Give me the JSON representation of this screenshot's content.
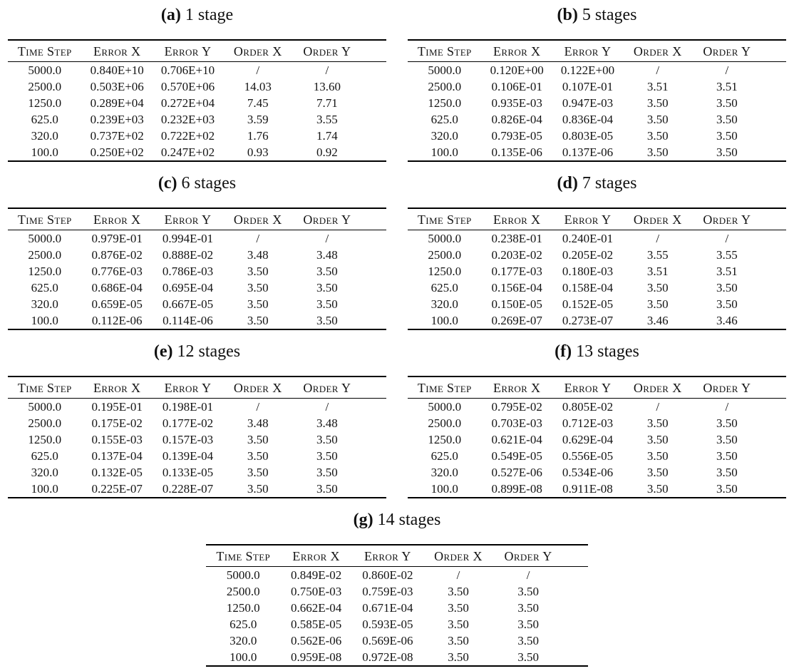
{
  "page": {
    "background_color": "#ffffff",
    "text_color": "#141414",
    "rule_color": "#000000"
  },
  "tables": [
    {
      "id": "a",
      "label_display": "(a)",
      "title": "1 stage",
      "columns": [
        "Time Step",
        "Error X",
        "Error Y",
        "Order X",
        "Order Y"
      ],
      "rows": [
        [
          "5000.0",
          "0.840E+10",
          "0.706E+10",
          "/",
          "/"
        ],
        [
          "2500.0",
          "0.503E+06",
          "0.570E+06",
          "14.03",
          "13.60"
        ],
        [
          "1250.0",
          "0.289E+04",
          "0.272E+04",
          "7.45",
          "7.71"
        ],
        [
          "625.0",
          "0.239E+03",
          "0.232E+03",
          "3.59",
          "3.55"
        ],
        [
          "320.0",
          "0.737E+02",
          "0.722E+02",
          "1.76",
          "1.74"
        ],
        [
          "100.0",
          "0.250E+02",
          "0.247E+02",
          "0.93",
          "0.92"
        ]
      ],
      "placement": "grid"
    },
    {
      "id": "b",
      "label_display": "(b)",
      "title": "5 stages",
      "columns": [
        "Time Step",
        "Error X",
        "Error Y",
        "Order X",
        "Order Y"
      ],
      "rows": [
        [
          "5000.0",
          "0.120E+00",
          "0.122E+00",
          "/",
          "/"
        ],
        [
          "2500.0",
          "0.106E-01",
          "0.107E-01",
          "3.51",
          "3.51"
        ],
        [
          "1250.0",
          "0.935E-03",
          "0.947E-03",
          "3.50",
          "3.50"
        ],
        [
          "625.0",
          "0.826E-04",
          "0.836E-04",
          "3.50",
          "3.50"
        ],
        [
          "320.0",
          "0.793E-05",
          "0.803E-05",
          "3.50",
          "3.50"
        ],
        [
          "100.0",
          "0.135E-06",
          "0.137E-06",
          "3.50",
          "3.50"
        ]
      ],
      "placement": "grid"
    },
    {
      "id": "c",
      "label_display": "(c)",
      "title": "6 stages",
      "columns": [
        "Time Step",
        "Error X",
        "Error Y",
        "Order X",
        "Order Y"
      ],
      "rows": [
        [
          "5000.0",
          "0.979E-01",
          "0.994E-01",
          "/",
          "/"
        ],
        [
          "2500.0",
          "0.876E-02",
          "0.888E-02",
          "3.48",
          "3.48"
        ],
        [
          "1250.0",
          "0.776E-03",
          "0.786E-03",
          "3.50",
          "3.50"
        ],
        [
          "625.0",
          "0.686E-04",
          "0.695E-04",
          "3.50",
          "3.50"
        ],
        [
          "320.0",
          "0.659E-05",
          "0.667E-05",
          "3.50",
          "3.50"
        ],
        [
          "100.0",
          "0.112E-06",
          "0.114E-06",
          "3.50",
          "3.50"
        ]
      ],
      "placement": "grid"
    },
    {
      "id": "d",
      "label_display": "(d)",
      "title": "7 stages",
      "columns": [
        "Time Step",
        "Error X",
        "Error Y",
        "Order X",
        "Order Y"
      ],
      "rows": [
        [
          "5000.0",
          "0.238E-01",
          "0.240E-01",
          "/",
          "/"
        ],
        [
          "2500.0",
          "0.203E-02",
          "0.205E-02",
          "3.55",
          "3.55"
        ],
        [
          "1250.0",
          "0.177E-03",
          "0.180E-03",
          "3.51",
          "3.51"
        ],
        [
          "625.0",
          "0.156E-04",
          "0.158E-04",
          "3.50",
          "3.50"
        ],
        [
          "320.0",
          "0.150E-05",
          "0.152E-05",
          "3.50",
          "3.50"
        ],
        [
          "100.0",
          "0.269E-07",
          "0.273E-07",
          "3.46",
          "3.46"
        ]
      ],
      "placement": "grid"
    },
    {
      "id": "e",
      "label_display": "(e)",
      "title": "12 stages",
      "columns": [
        "Time Step",
        "Error X",
        "Error Y",
        "Order X",
        "Order Y"
      ],
      "rows": [
        [
          "5000.0",
          "0.195E-01",
          "0.198E-01",
          "/",
          "/"
        ],
        [
          "2500.0",
          "0.175E-02",
          "0.177E-02",
          "3.48",
          "3.48"
        ],
        [
          "1250.0",
          "0.155E-03",
          "0.157E-03",
          "3.50",
          "3.50"
        ],
        [
          "625.0",
          "0.137E-04",
          "0.139E-04",
          "3.50",
          "3.50"
        ],
        [
          "320.0",
          "0.132E-05",
          "0.133E-05",
          "3.50",
          "3.50"
        ],
        [
          "100.0",
          "0.225E-07",
          "0.228E-07",
          "3.50",
          "3.50"
        ]
      ],
      "placement": "grid"
    },
    {
      "id": "f",
      "label_display": "(f)",
      "title": "13 stages",
      "columns": [
        "Time Step",
        "Error X",
        "Error Y",
        "Order X",
        "Order Y"
      ],
      "rows": [
        [
          "5000.0",
          "0.795E-02",
          "0.805E-02",
          "/",
          "/"
        ],
        [
          "2500.0",
          "0.703E-03",
          "0.712E-03",
          "3.50",
          "3.50"
        ],
        [
          "1250.0",
          "0.621E-04",
          "0.629E-04",
          "3.50",
          "3.50"
        ],
        [
          "625.0",
          "0.549E-05",
          "0.556E-05",
          "3.50",
          "3.50"
        ],
        [
          "320.0",
          "0.527E-06",
          "0.534E-06",
          "3.50",
          "3.50"
        ],
        [
          "100.0",
          "0.899E-08",
          "0.911E-08",
          "3.50",
          "3.50"
        ]
      ],
      "placement": "grid"
    },
    {
      "id": "g",
      "label_display": "(g)",
      "title": "14 stages",
      "columns": [
        "Time Step",
        "Error X",
        "Error Y",
        "Order X",
        "Order Y"
      ],
      "rows": [
        [
          "5000.0",
          "0.849E-02",
          "0.860E-02",
          "/",
          "/"
        ],
        [
          "2500.0",
          "0.750E-03",
          "0.759E-03",
          "3.50",
          "3.50"
        ],
        [
          "1250.0",
          "0.662E-04",
          "0.671E-04",
          "3.50",
          "3.50"
        ],
        [
          "625.0",
          "0.585E-05",
          "0.593E-05",
          "3.50",
          "3.50"
        ],
        [
          "320.0",
          "0.562E-06",
          "0.569E-06",
          "3.50",
          "3.50"
        ],
        [
          "100.0",
          "0.959E-08",
          "0.972E-08",
          "3.50",
          "3.50"
        ]
      ],
      "placement": "center"
    }
  ]
}
